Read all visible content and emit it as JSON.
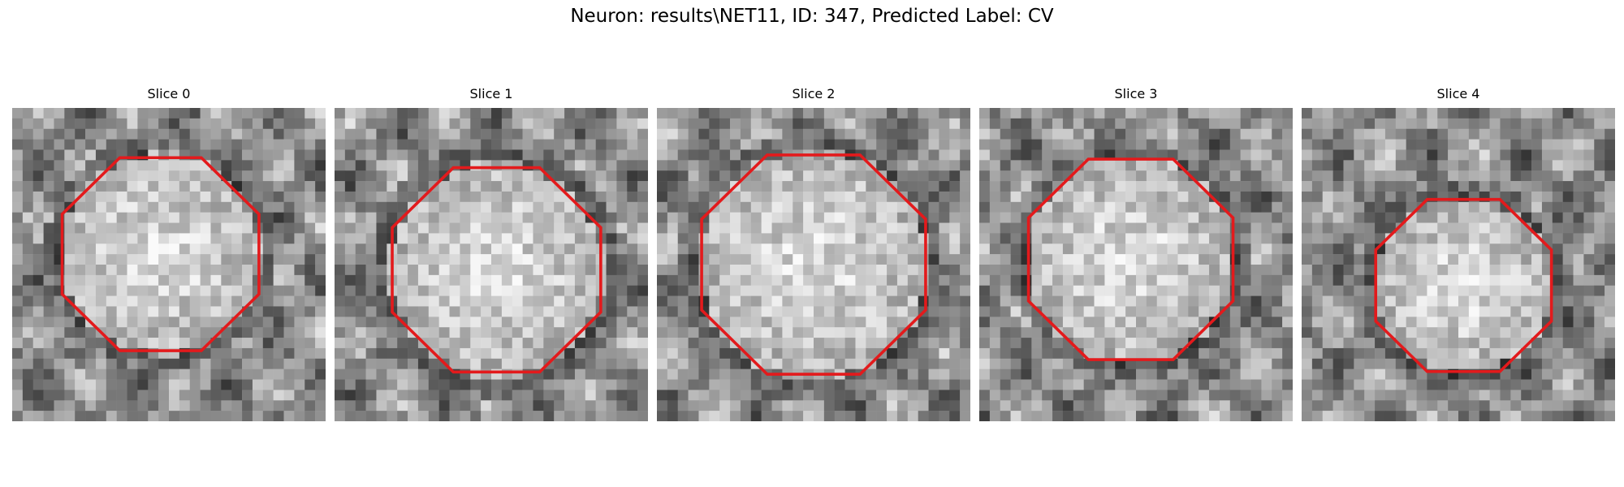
{
  "figure": {
    "title": "Neuron: results\\NET11, ID: 347, Predicted Label: CV",
    "contour_color": "#e31a1c",
    "colormap": "gray",
    "slices": [
      {
        "label": "Slice 0"
      },
      {
        "label": "Slice 1"
      },
      {
        "label": "Slice 2"
      },
      {
        "label": "Slice 3"
      },
      {
        "label": "Slice 4"
      }
    ]
  }
}
